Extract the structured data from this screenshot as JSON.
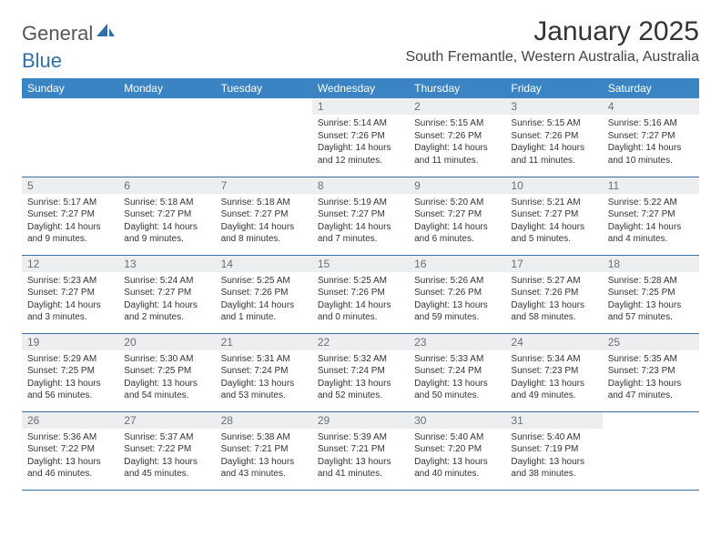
{
  "logo": {
    "text1": "General",
    "text2": "Blue",
    "color1": "#6b6b6b",
    "color2": "#2f6fae"
  },
  "title": "January 2025",
  "location": "South Fremantle, Western Australia, Australia",
  "header_bg": "#3b84c4",
  "row_border": "#3b6fa0",
  "daynum_bg": "#eceef0",
  "weekdays": [
    "Sunday",
    "Monday",
    "Tuesday",
    "Wednesday",
    "Thursday",
    "Friday",
    "Saturday"
  ],
  "weeks": [
    [
      {
        "empty": true
      },
      {
        "empty": true
      },
      {
        "empty": true
      },
      {
        "n": "1",
        "l1": "Sunrise: 5:14 AM",
        "l2": "Sunset: 7:26 PM",
        "l3": "Daylight: 14 hours",
        "l4": "and 12 minutes."
      },
      {
        "n": "2",
        "l1": "Sunrise: 5:15 AM",
        "l2": "Sunset: 7:26 PM",
        "l3": "Daylight: 14 hours",
        "l4": "and 11 minutes."
      },
      {
        "n": "3",
        "l1": "Sunrise: 5:15 AM",
        "l2": "Sunset: 7:26 PM",
        "l3": "Daylight: 14 hours",
        "l4": "and 11 minutes."
      },
      {
        "n": "4",
        "l1": "Sunrise: 5:16 AM",
        "l2": "Sunset: 7:27 PM",
        "l3": "Daylight: 14 hours",
        "l4": "and 10 minutes."
      }
    ],
    [
      {
        "n": "5",
        "l1": "Sunrise: 5:17 AM",
        "l2": "Sunset: 7:27 PM",
        "l3": "Daylight: 14 hours",
        "l4": "and 9 minutes."
      },
      {
        "n": "6",
        "l1": "Sunrise: 5:18 AM",
        "l2": "Sunset: 7:27 PM",
        "l3": "Daylight: 14 hours",
        "l4": "and 9 minutes."
      },
      {
        "n": "7",
        "l1": "Sunrise: 5:18 AM",
        "l2": "Sunset: 7:27 PM",
        "l3": "Daylight: 14 hours",
        "l4": "and 8 minutes."
      },
      {
        "n": "8",
        "l1": "Sunrise: 5:19 AM",
        "l2": "Sunset: 7:27 PM",
        "l3": "Daylight: 14 hours",
        "l4": "and 7 minutes."
      },
      {
        "n": "9",
        "l1": "Sunrise: 5:20 AM",
        "l2": "Sunset: 7:27 PM",
        "l3": "Daylight: 14 hours",
        "l4": "and 6 minutes."
      },
      {
        "n": "10",
        "l1": "Sunrise: 5:21 AM",
        "l2": "Sunset: 7:27 PM",
        "l3": "Daylight: 14 hours",
        "l4": "and 5 minutes."
      },
      {
        "n": "11",
        "l1": "Sunrise: 5:22 AM",
        "l2": "Sunset: 7:27 PM",
        "l3": "Daylight: 14 hours",
        "l4": "and 4 minutes."
      }
    ],
    [
      {
        "n": "12",
        "l1": "Sunrise: 5:23 AM",
        "l2": "Sunset: 7:27 PM",
        "l3": "Daylight: 14 hours",
        "l4": "and 3 minutes."
      },
      {
        "n": "13",
        "l1": "Sunrise: 5:24 AM",
        "l2": "Sunset: 7:27 PM",
        "l3": "Daylight: 14 hours",
        "l4": "and 2 minutes."
      },
      {
        "n": "14",
        "l1": "Sunrise: 5:25 AM",
        "l2": "Sunset: 7:26 PM",
        "l3": "Daylight: 14 hours",
        "l4": "and 1 minute."
      },
      {
        "n": "15",
        "l1": "Sunrise: 5:25 AM",
        "l2": "Sunset: 7:26 PM",
        "l3": "Daylight: 14 hours",
        "l4": "and 0 minutes."
      },
      {
        "n": "16",
        "l1": "Sunrise: 5:26 AM",
        "l2": "Sunset: 7:26 PM",
        "l3": "Daylight: 13 hours",
        "l4": "and 59 minutes."
      },
      {
        "n": "17",
        "l1": "Sunrise: 5:27 AM",
        "l2": "Sunset: 7:26 PM",
        "l3": "Daylight: 13 hours",
        "l4": "and 58 minutes."
      },
      {
        "n": "18",
        "l1": "Sunrise: 5:28 AM",
        "l2": "Sunset: 7:25 PM",
        "l3": "Daylight: 13 hours",
        "l4": "and 57 minutes."
      }
    ],
    [
      {
        "n": "19",
        "l1": "Sunrise: 5:29 AM",
        "l2": "Sunset: 7:25 PM",
        "l3": "Daylight: 13 hours",
        "l4": "and 56 minutes."
      },
      {
        "n": "20",
        "l1": "Sunrise: 5:30 AM",
        "l2": "Sunset: 7:25 PM",
        "l3": "Daylight: 13 hours",
        "l4": "and 54 minutes."
      },
      {
        "n": "21",
        "l1": "Sunrise: 5:31 AM",
        "l2": "Sunset: 7:24 PM",
        "l3": "Daylight: 13 hours",
        "l4": "and 53 minutes."
      },
      {
        "n": "22",
        "l1": "Sunrise: 5:32 AM",
        "l2": "Sunset: 7:24 PM",
        "l3": "Daylight: 13 hours",
        "l4": "and 52 minutes."
      },
      {
        "n": "23",
        "l1": "Sunrise: 5:33 AM",
        "l2": "Sunset: 7:24 PM",
        "l3": "Daylight: 13 hours",
        "l4": "and 50 minutes."
      },
      {
        "n": "24",
        "l1": "Sunrise: 5:34 AM",
        "l2": "Sunset: 7:23 PM",
        "l3": "Daylight: 13 hours",
        "l4": "and 49 minutes."
      },
      {
        "n": "25",
        "l1": "Sunrise: 5:35 AM",
        "l2": "Sunset: 7:23 PM",
        "l3": "Daylight: 13 hours",
        "l4": "and 47 minutes."
      }
    ],
    [
      {
        "n": "26",
        "l1": "Sunrise: 5:36 AM",
        "l2": "Sunset: 7:22 PM",
        "l3": "Daylight: 13 hours",
        "l4": "and 46 minutes."
      },
      {
        "n": "27",
        "l1": "Sunrise: 5:37 AM",
        "l2": "Sunset: 7:22 PM",
        "l3": "Daylight: 13 hours",
        "l4": "and 45 minutes."
      },
      {
        "n": "28",
        "l1": "Sunrise: 5:38 AM",
        "l2": "Sunset: 7:21 PM",
        "l3": "Daylight: 13 hours",
        "l4": "and 43 minutes."
      },
      {
        "n": "29",
        "l1": "Sunrise: 5:39 AM",
        "l2": "Sunset: 7:21 PM",
        "l3": "Daylight: 13 hours",
        "l4": "and 41 minutes."
      },
      {
        "n": "30",
        "l1": "Sunrise: 5:40 AM",
        "l2": "Sunset: 7:20 PM",
        "l3": "Daylight: 13 hours",
        "l4": "and 40 minutes."
      },
      {
        "n": "31",
        "l1": "Sunrise: 5:40 AM",
        "l2": "Sunset: 7:19 PM",
        "l3": "Daylight: 13 hours",
        "l4": "and 38 minutes."
      },
      {
        "empty": true
      }
    ]
  ]
}
